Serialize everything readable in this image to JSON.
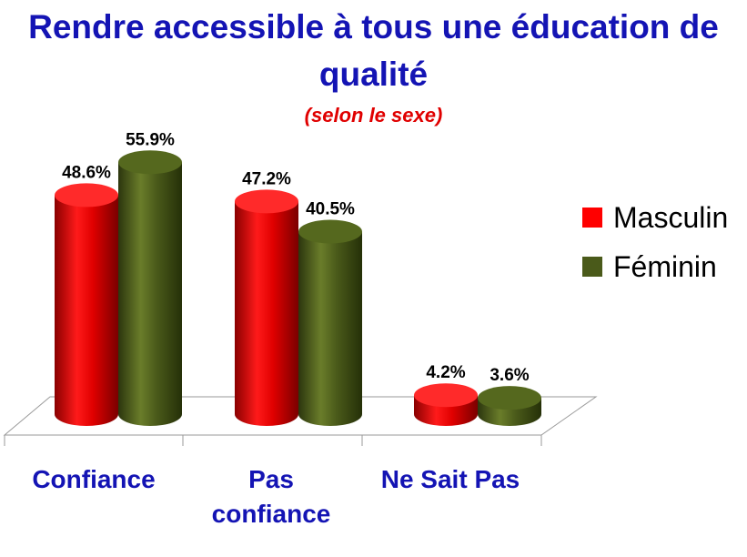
{
  "chart_data": {
    "type": "bar",
    "title_line1": "Rendre accessible à tous une éducation de",
    "title_line2": "qualité",
    "subtitle": "(selon le sexe)",
    "categories": [
      "Confiance",
      "Pas confiance",
      "Ne Sait Pas"
    ],
    "series": [
      {
        "name": "Masculin",
        "values": [
          48.6,
          47.2,
          4.2
        ],
        "labels": [
          "48.6%",
          "47.2%",
          "4.2%"
        ],
        "color": "#e00000"
      },
      {
        "name": "Féminin",
        "values": [
          55.9,
          40.5,
          3.6
        ],
        "labels": [
          "55.9%",
          "40.5%",
          "3.6%"
        ],
        "color": "#4a5a1a"
      }
    ],
    "ylim": [
      0,
      60
    ],
    "grid": false,
    "legend_position": "right",
    "style": "3d-cylinder"
  }
}
